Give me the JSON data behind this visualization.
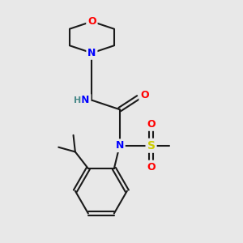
{
  "bg_color": "#e8e8e8",
  "bond_color": "#1a1a1a",
  "atom_colors": {
    "O": "#ff0000",
    "N": "#0000ff",
    "S": "#cccc00",
    "H": "#4a8a8a",
    "C": "#1a1a1a"
  },
  "figsize": [
    3.0,
    3.0
  ],
  "dpi": 100
}
